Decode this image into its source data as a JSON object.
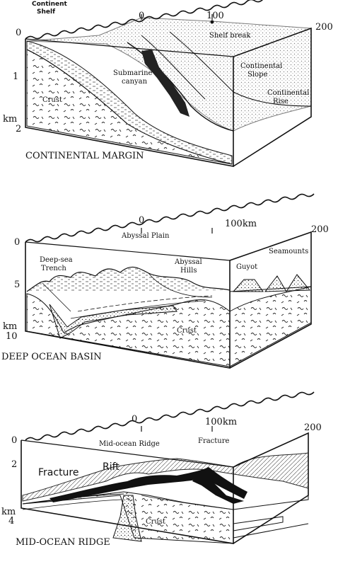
{
  "panels": [
    {
      "title": "CONTINENTAL MARGIN",
      "scale_top": [
        "0",
        "100",
        "200"
      ],
      "depth_labels": [
        "0",
        "1",
        "km",
        "2"
      ],
      "features": [
        "Continent Shelf",
        "Shelf break",
        "Submarine canyan",
        "Continental Slope",
        "Continental Rise",
        "Crust"
      ]
    },
    {
      "title": "DEEP OCEAN BASIN",
      "scale_top": [
        "0",
        "100km",
        "200"
      ],
      "depth_labels": [
        "0",
        "5",
        "km",
        "10"
      ],
      "features": [
        "Abyssal Plain",
        "Deep-sea Trench",
        "Abyssal Hills",
        "Guyot",
        "Seamounts",
        "Crust"
      ]
    },
    {
      "title": "MID-OCEAN RIDGE",
      "scale_top": [
        "0",
        "100km",
        "200"
      ],
      "depth_labels": [
        "0",
        "2",
        "km",
        "4"
      ],
      "features": [
        "Mid-ocean Ridge",
        "Fracture",
        "Fracture",
        "Rift",
        "Crust"
      ]
    }
  ]
}
